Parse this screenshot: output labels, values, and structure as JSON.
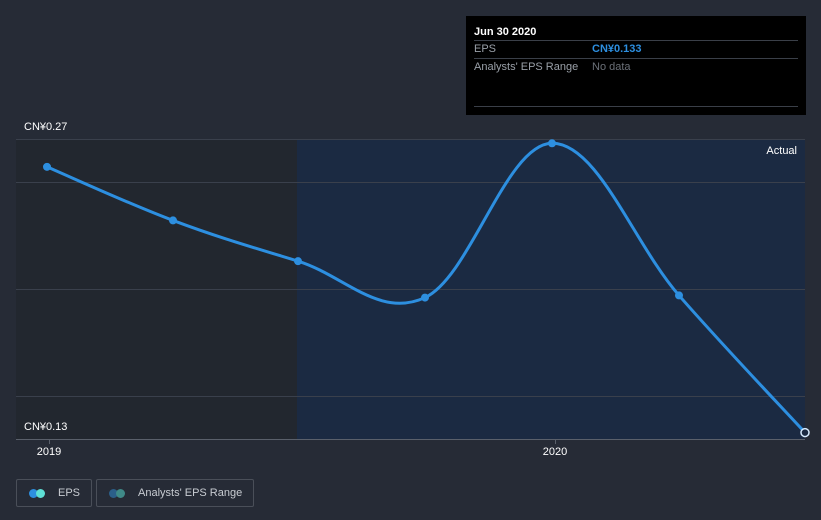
{
  "chart_data": {
    "type": "line",
    "title": "",
    "xlabel": "",
    "ylabel": "EPS",
    "ylim": [
      0.13,
      0.27
    ],
    "y_ticks": [
      "CN¥0.27",
      "CN¥0.13"
    ],
    "x_ticks": [
      "2019",
      "2020"
    ],
    "grid": true,
    "legend_position": "bottom-left",
    "x": [
      "Dec 31 2018",
      "Mar 31 2019",
      "Jun 30 2019",
      "Sep 30 2019",
      "Dec 31 2019",
      "Mar 31 2020",
      "Jun 30 2020"
    ],
    "series": [
      {
        "name": "EPS",
        "values": [
          0.257,
          0.232,
          0.213,
          0.196,
          0.268,
          0.197,
          0.133
        ],
        "color": "#2d8fe0"
      },
      {
        "name": "Analysts' EPS Range",
        "values": [],
        "color": "#2f6f7f"
      }
    ],
    "annotations": [
      "Actual"
    ]
  },
  "axis": {
    "y_top_label": "CN¥0.27",
    "y_bottom_label": "CN¥0.13",
    "x_label_2019": "2019",
    "x_label_2020": "2020"
  },
  "region_label": "Actual",
  "tooltip": {
    "date": "Jun 30 2020",
    "rows": [
      {
        "key": "EPS",
        "value": "CN¥0.133"
      },
      {
        "key": "Analysts' EPS Range",
        "value": "No data"
      }
    ]
  },
  "legend": [
    {
      "label": "EPS",
      "colors": [
        "#2d8fe0",
        "#5ee0d6"
      ]
    },
    {
      "label": "Analysts' EPS Range",
      "colors": [
        "#2b5f8a",
        "#3f8a88"
      ]
    }
  ],
  "colors": {
    "background": "#262b36",
    "past_region": "#22272f",
    "actual_region": "#1a2b45",
    "line": "#2d8fe0",
    "grid": "#3a404c"
  }
}
